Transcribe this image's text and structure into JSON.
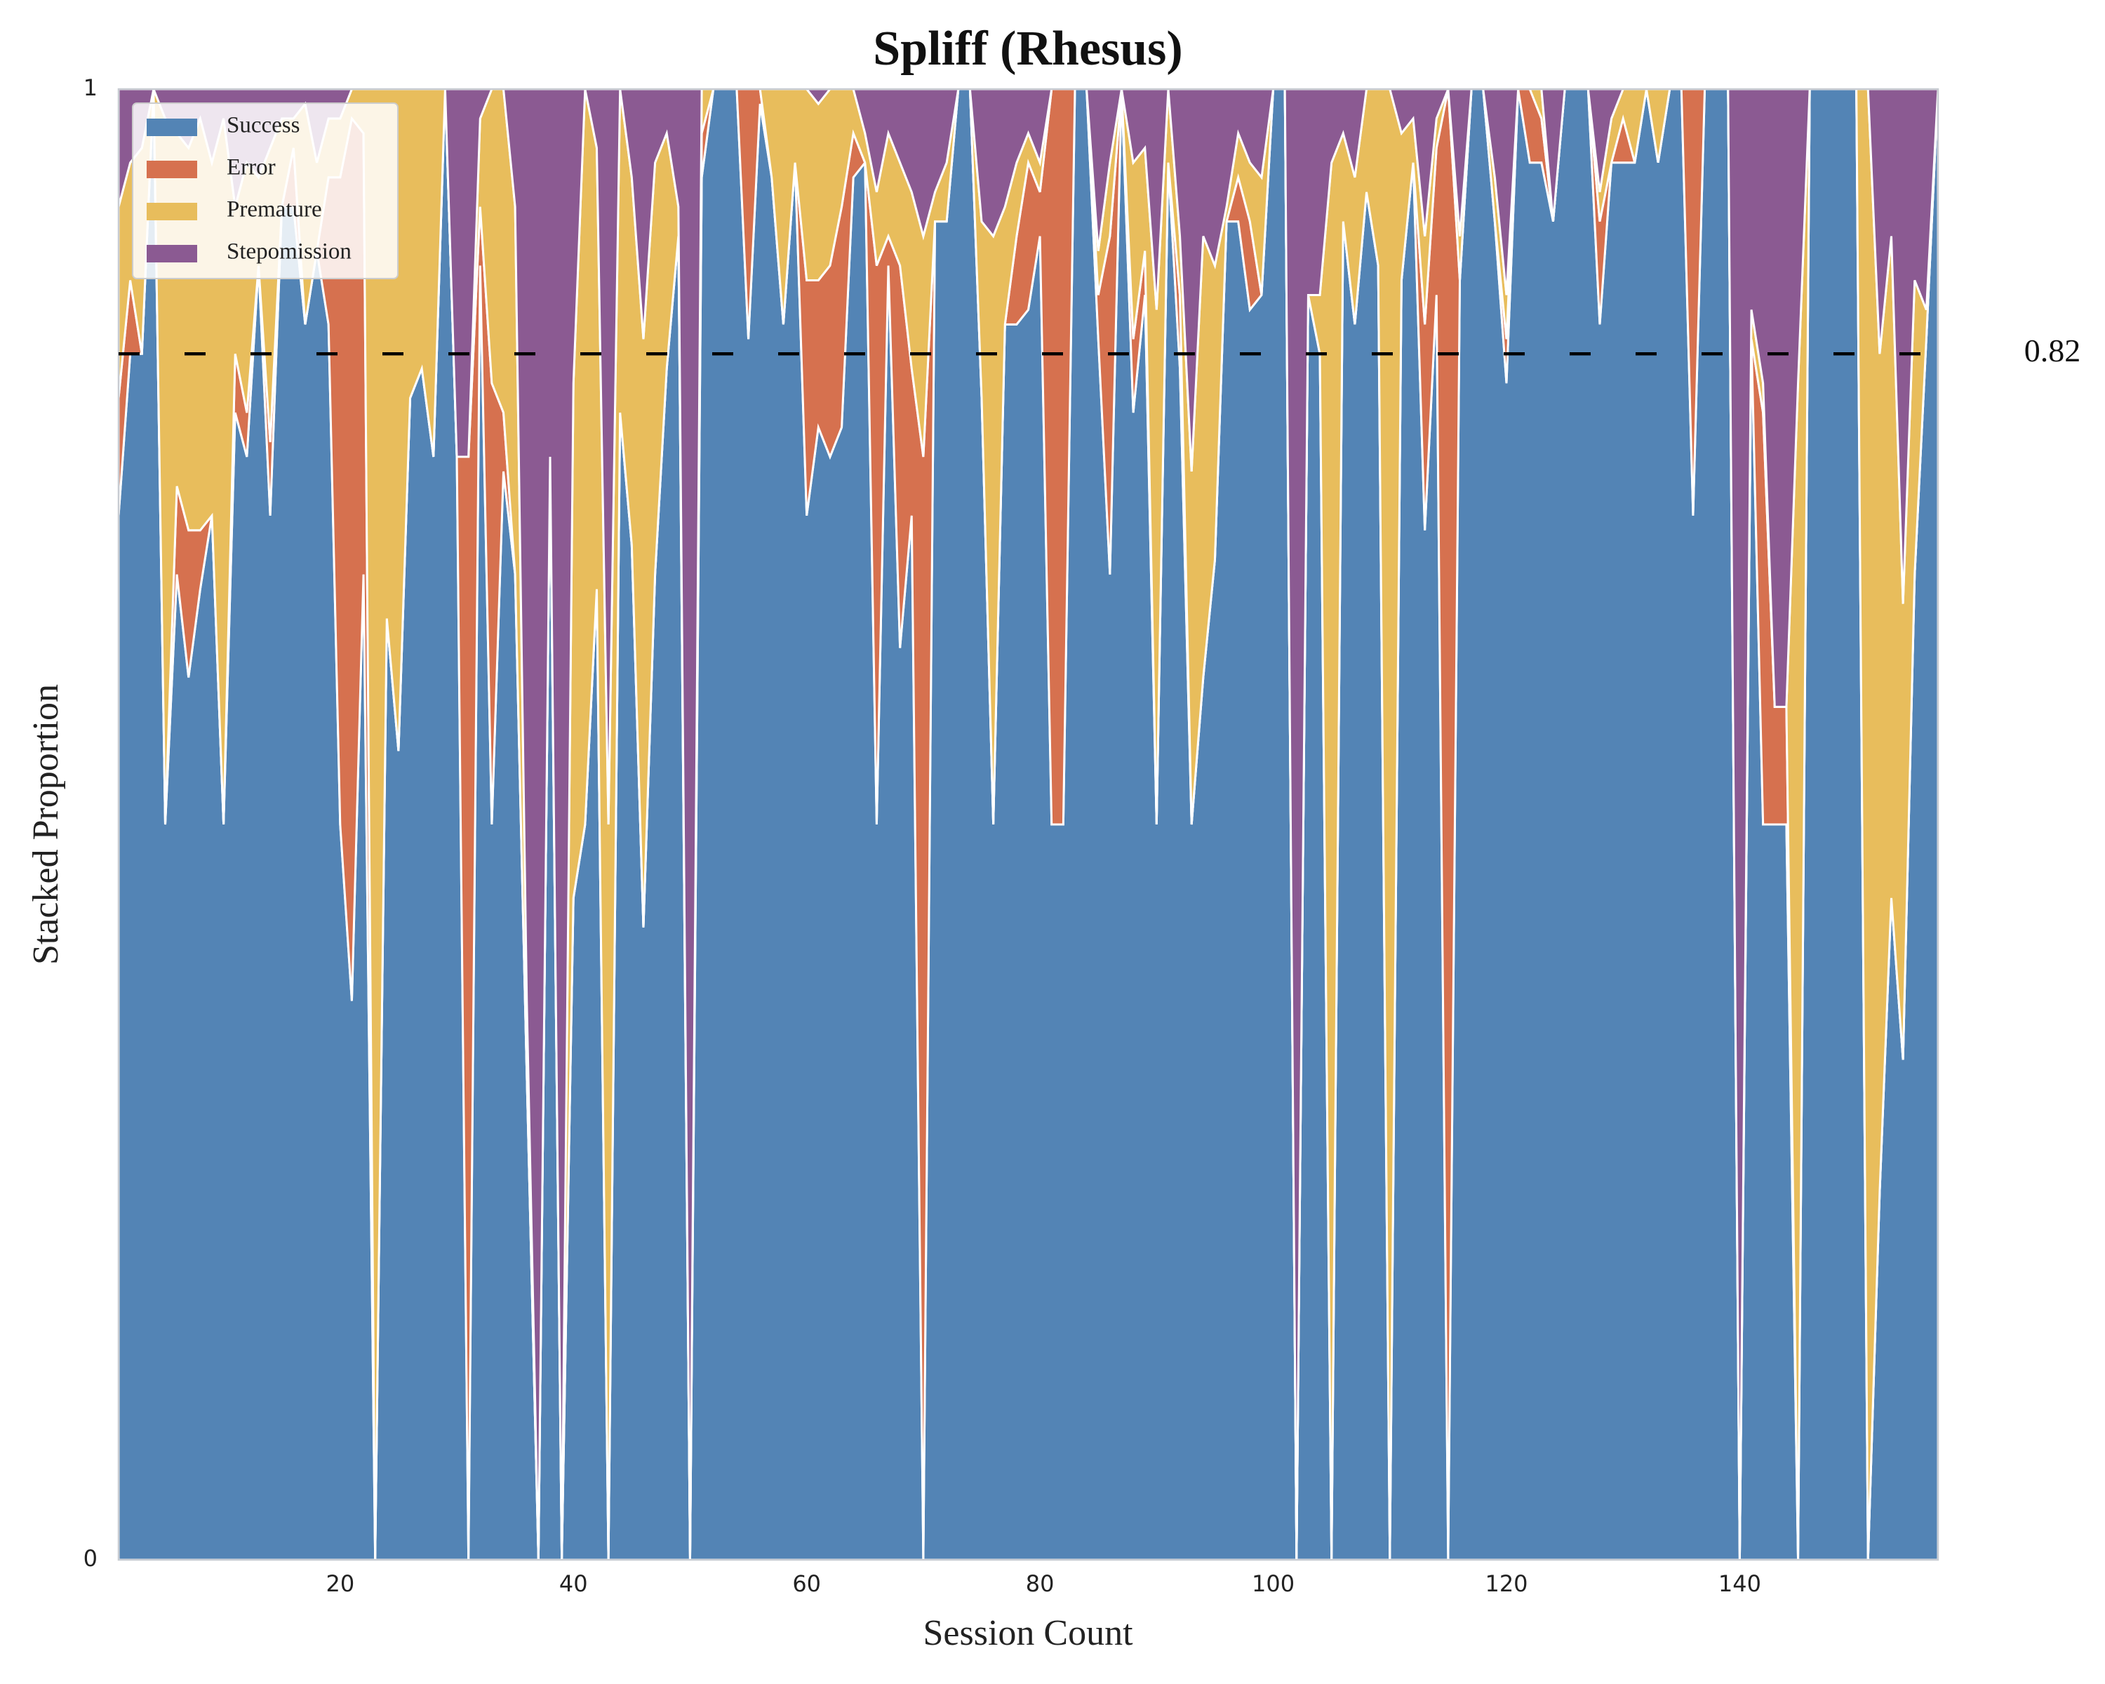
{
  "chart_data": {
    "type": "stacked_area",
    "title": "Spliff (Rhesus)",
    "x_label": "Session Count",
    "y_label": "Stacked Proportion",
    "x": [
      1,
      2,
      3,
      4,
      5,
      6,
      7,
      8,
      9,
      10,
      11,
      12,
      13,
      14,
      15,
      16,
      17,
      18,
      19,
      20,
      21,
      22,
      23,
      24,
      25,
      26,
      27,
      28,
      29,
      30,
      31,
      32,
      33,
      34,
      35,
      36,
      37,
      38,
      39,
      40,
      41,
      42,
      43,
      44,
      45,
      46,
      47,
      48,
      49,
      50,
      51,
      52,
      53,
      54,
      55,
      56,
      57,
      58,
      59,
      60,
      61,
      62,
      63,
      64,
      65,
      66,
      67,
      68,
      69,
      70,
      71,
      72,
      73,
      74,
      75,
      76,
      77,
      78,
      79,
      80,
      81,
      82,
      83,
      84,
      85,
      86,
      87,
      88,
      89,
      90,
      91,
      92,
      93,
      94,
      95,
      96,
      97,
      98,
      99,
      100,
      101,
      102,
      103,
      104,
      105,
      106,
      107,
      108,
      109,
      110,
      111,
      112,
      113,
      114,
      115,
      116,
      117,
      118,
      119,
      120,
      121,
      122,
      123,
      124,
      125,
      126,
      127,
      128,
      129,
      130,
      131,
      132,
      133,
      134,
      135,
      136,
      137,
      138,
      139,
      140,
      141,
      142,
      143,
      144,
      145,
      146,
      147,
      148,
      149,
      150,
      151,
      152,
      153,
      154,
      155,
      156,
      157
    ],
    "series": [
      {
        "name": "Success",
        "color": "#5384b5",
        "values": [
          0.71,
          0.82,
          0.82,
          1,
          0.5,
          0.67,
          0.6,
          0.66,
          0.71,
          0.5,
          0.78,
          0.75,
          0.88,
          0.71,
          0.92,
          0.92,
          0.84,
          0.89,
          0.84,
          0.5,
          0.38,
          0.67,
          0,
          0.64,
          0.55,
          0.79,
          0.81,
          0.75,
          1,
          0.75,
          0,
          0.88,
          0.5,
          0.74,
          0.67,
          0.33,
          0,
          0.75,
          0,
          0.45,
          0.5,
          0.66,
          0,
          0.78,
          0.69,
          0.43,
          0.67,
          0.81,
          0.9,
          0,
          0.94,
          1,
          1,
          1,
          0.83,
          0.99,
          0.94,
          0.84,
          0.95,
          0.71,
          0.77,
          0.75,
          0.77,
          0.94,
          0.95,
          0.5,
          0.88,
          0.62,
          0.71,
          0,
          0.91,
          0.91,
          1,
          1,
          0.79,
          0.5,
          0.84,
          0.84,
          0.85,
          0.9,
          0.5,
          0.5,
          1,
          1,
          0.83,
          0.67,
          1,
          0.78,
          0.86,
          0.5,
          0.95,
          0.81,
          0.5,
          0.6,
          0.68,
          0.91,
          0.91,
          0.85,
          0.86,
          1,
          1,
          0,
          0.86,
          0.82,
          0,
          0.91,
          0.84,
          0.93,
          0.88,
          0,
          0.87,
          0.95,
          0.7,
          0.86,
          0,
          0.87,
          1,
          1,
          0.91,
          0.8,
          1,
          0.95,
          0.95,
          0.91,
          1,
          1,
          1,
          0.84,
          0.95,
          0.95,
          0.95,
          1,
          0.95,
          1,
          1,
          0.71,
          1,
          1,
          1,
          0,
          0.83,
          0.5,
          0.5,
          0.5,
          0,
          1,
          1,
          1,
          1,
          1,
          0,
          0.25,
          0.45,
          0.34,
          0.67,
          0.83,
          1
        ]
      },
      {
        "name": "Error",
        "color": "#d6714f",
        "values": [
          0.08,
          0.05,
          0,
          0,
          0,
          0.06,
          0.1,
          0.04,
          0,
          0,
          0.04,
          0.03,
          0,
          0.05,
          0,
          0.04,
          0,
          0,
          0.1,
          0.44,
          0.6,
          0.3,
          0,
          0,
          0,
          0,
          0,
          0,
          0,
          0,
          0.75,
          0.04,
          0.3,
          0.04,
          0,
          0,
          0,
          0,
          0,
          0,
          0,
          0,
          0,
          0,
          0,
          0,
          0,
          0,
          0,
          0,
          0.03,
          0,
          0,
          0,
          0.17,
          0.01,
          0,
          0,
          0,
          0.16,
          0.1,
          0.13,
          0.15,
          0.03,
          0,
          0.38,
          0.02,
          0.26,
          0.1,
          0.75,
          0,
          0,
          0,
          0,
          0,
          0,
          0,
          0.06,
          0.1,
          0.03,
          0.5,
          0.5,
          0,
          0,
          0.03,
          0.23,
          0,
          0.05,
          0.03,
          0,
          0,
          0.05,
          0,
          0,
          0,
          0,
          0.03,
          0.06,
          0,
          0,
          0,
          0,
          0,
          0,
          0,
          0,
          0,
          0,
          0,
          0,
          0,
          0,
          0.14,
          0.1,
          1,
          0,
          0,
          0,
          0,
          0.03,
          0,
          0.05,
          0.03,
          0,
          0,
          0,
          0,
          0.07,
          0,
          0.03,
          0,
          0,
          0,
          0,
          0,
          0.29,
          0,
          0,
          0,
          0,
          0,
          0.28,
          0.08,
          0.08,
          0,
          0,
          0,
          0,
          0,
          0,
          0,
          0,
          0,
          0,
          0,
          0,
          0
        ]
      },
      {
        "name": "Premature",
        "color": "#e8bd5c",
        "values": [
          0.13,
          0.08,
          0.14,
          0,
          0.48,
          0.24,
          0.26,
          0.28,
          0.24,
          0.48,
          0.1,
          0.17,
          0.06,
          0.2,
          0.06,
          0.02,
          0.15,
          0.06,
          0.04,
          0.04,
          0.02,
          0.03,
          1,
          0.36,
          0.45,
          0.21,
          0.19,
          0.25,
          0,
          0,
          0,
          0.06,
          0.2,
          0.22,
          0.25,
          0.05,
          0,
          0,
          0,
          0.35,
          0.5,
          0.3,
          0.5,
          0.22,
          0.25,
          0.4,
          0.28,
          0.16,
          0.02,
          0,
          0.03,
          0,
          0,
          0,
          0,
          0,
          0.06,
          0.16,
          0.05,
          0.13,
          0.12,
          0.12,
          0.08,
          0.03,
          0.02,
          0.05,
          0.07,
          0.07,
          0.12,
          0.15,
          0.02,
          0.04,
          0,
          0,
          0.12,
          0.4,
          0.08,
          0.05,
          0.02,
          0.02,
          0,
          0,
          0,
          0,
          0.03,
          0.05,
          0,
          0.12,
          0.07,
          0.35,
          0.05,
          0.04,
          0.24,
          0.3,
          0.2,
          0.01,
          0.03,
          0.04,
          0.08,
          0,
          0,
          0,
          0,
          0.04,
          0.95,
          0.06,
          0.1,
          0.07,
          0.12,
          1,
          0.1,
          0.03,
          0.06,
          0.02,
          0,
          0.03,
          0,
          0,
          0.03,
          0.03,
          0,
          0,
          0.02,
          0,
          0,
          0,
          0,
          0.02,
          0.03,
          0.02,
          0.05,
          0,
          0.05,
          0,
          0,
          0,
          0,
          0,
          0,
          0,
          0.02,
          0.02,
          0,
          0,
          0.8,
          0,
          0,
          0,
          0,
          0,
          1,
          0.57,
          0.45,
          0.31,
          0.2,
          0.02,
          0
        ]
      },
      {
        "name": "Stepomission",
        "color": "#8b5a92",
        "values": [
          0.08,
          0.05,
          0.04,
          0,
          0.02,
          0.03,
          0.04,
          0.02,
          0.05,
          0.02,
          0.08,
          0.05,
          0.06,
          0.04,
          0.02,
          0.02,
          0.01,
          0.05,
          0.02,
          0.02,
          0,
          0,
          0,
          0,
          0,
          0,
          0,
          0,
          0,
          0.25,
          0.25,
          0.02,
          0,
          0,
          0.08,
          0.62,
          1,
          0.25,
          1,
          0.2,
          0,
          0.04,
          0.5,
          0,
          0.06,
          0.17,
          0.05,
          0.03,
          0.08,
          1,
          0,
          0,
          0,
          0,
          0,
          0,
          0,
          0,
          0,
          0,
          0.01,
          0,
          0,
          0,
          0.03,
          0.07,
          0.03,
          0.05,
          0.07,
          0.1,
          0.07,
          0.05,
          0,
          0,
          0.09,
          0.1,
          0.08,
          0.05,
          0.03,
          0.05,
          0,
          0,
          0,
          0,
          0.11,
          0.05,
          0,
          0.05,
          0.04,
          0.15,
          0,
          0.1,
          0.26,
          0.1,
          0.12,
          0.08,
          0.03,
          0.05,
          0.06,
          0,
          0,
          1,
          0.14,
          0.14,
          0.05,
          0.03,
          0.06,
          0,
          0,
          0,
          0.03,
          0.02,
          0.1,
          0.02,
          0,
          0.1,
          0,
          0,
          0.06,
          0.14,
          0,
          0,
          0,
          0.09,
          0,
          0,
          0,
          0.07,
          0.02,
          0,
          0,
          0,
          0,
          0,
          0,
          0,
          0,
          0,
          0,
          1,
          0.15,
          0.2,
          0.42,
          0.42,
          0.2,
          0,
          0,
          0,
          0,
          0,
          0,
          0.18,
          0.1,
          0.35,
          0.13,
          0.15,
          0
        ]
      }
    ],
    "reference_line": 0.82,
    "xlim": [
      1,
      157
    ],
    "ylim": [
      0,
      1
    ],
    "xticks": [
      20,
      40,
      60,
      80,
      100,
      120,
      140
    ],
    "yticks": [
      0,
      1
    ],
    "legend": "upper left",
    "grid": false
  }
}
